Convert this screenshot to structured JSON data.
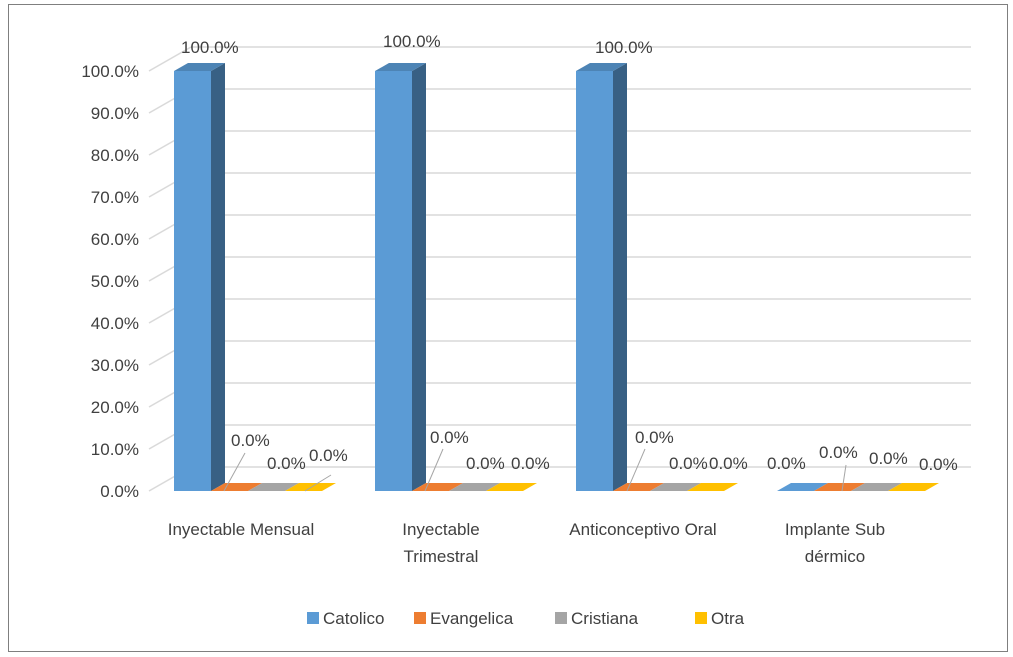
{
  "chart_data": {
    "type": "bar",
    "categories": [
      [
        "Inyectable Mensual"
      ],
      [
        "Inyectable",
        "Trimestral"
      ],
      [
        "Anticonceptivo Oral"
      ],
      [
        "Implante Sub",
        "dérmico"
      ]
    ],
    "series": [
      {
        "name": "Catolico",
        "color": "#5b9bd5",
        "values": [
          100.0,
          100.0,
          100.0,
          0.0
        ]
      },
      {
        "name": "Evangelica",
        "color": "#ed7d31",
        "values": [
          0.0,
          0.0,
          0.0,
          0.0
        ]
      },
      {
        "name": "Cristiana",
        "color": "#a5a5a5",
        "values": [
          0.0,
          0.0,
          0.0,
          0.0
        ]
      },
      {
        "name": "Otra",
        "color": "#ffc000",
        "values": [
          0.0,
          0.0,
          0.0,
          0.0
        ]
      }
    ],
    "data_labels": [
      [
        "100.0%",
        "0.0%",
        "0.0%",
        "0.0%"
      ],
      [
        "100.0%",
        "0.0%",
        "0.0%",
        "0.0%"
      ],
      [
        "100.0%",
        "0.0%",
        "0.0%",
        "0.0%"
      ],
      [
        "0.0%",
        "0.0%",
        "0.0%",
        "0.0%"
      ]
    ],
    "y_ticks": [
      "0.0%",
      "10.0%",
      "20.0%",
      "30.0%",
      "40.0%",
      "50.0%",
      "60.0%",
      "70.0%",
      "80.0%",
      "90.0%",
      "100.0%"
    ],
    "ylim": [
      0,
      100
    ],
    "grid": true,
    "three_d": true,
    "legend_position": "bottom",
    "title": "",
    "xlabel": "",
    "ylabel": ""
  }
}
